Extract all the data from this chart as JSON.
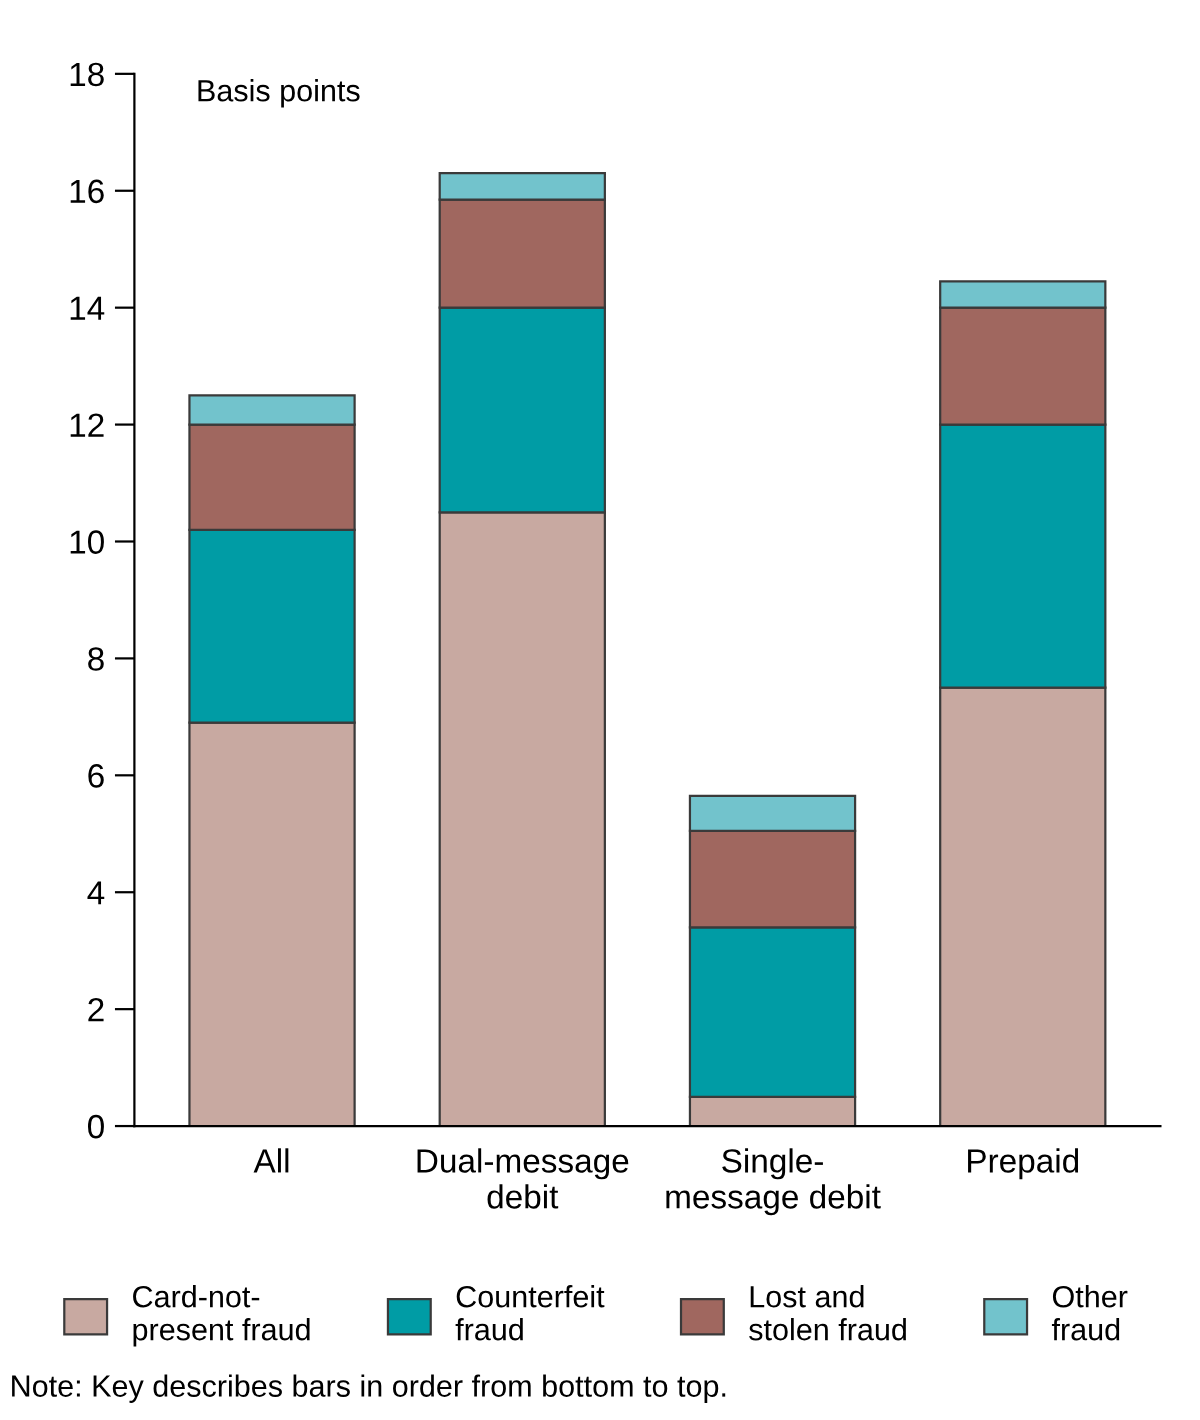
{
  "chart_data": {
    "type": "bar",
    "stacked": true,
    "ylabel": "Basis points",
    "categories": [
      "All",
      "Dual-message\ndebit",
      "Single-\nmessage debit",
      "Prepaid"
    ],
    "series": [
      {
        "name": "Card-not-\npresent fraud",
        "color": "#c8a9a1",
        "values": [
          6.9,
          10.5,
          0.5,
          7.5
        ]
      },
      {
        "name": "Counterfeit\nfraud",
        "color": "#009ca5",
        "values": [
          3.3,
          3.5,
          2.9,
          4.5
        ]
      },
      {
        "name": "Lost and\nstolen fraud",
        "color": "#a0675f",
        "values": [
          1.8,
          1.85,
          1.65,
          2.0
        ]
      },
      {
        "name": "Other\nfraud",
        "color": "#72c3cc",
        "values": [
          0.5,
          0.45,
          0.6,
          0.45
        ]
      }
    ],
    "ylim": [
      0,
      18
    ],
    "yticks": [
      0,
      2,
      4,
      6,
      8,
      10,
      12,
      14,
      16,
      18
    ],
    "grid": false,
    "legend": "bottom",
    "annotations": [
      "Note: Key describes bars in order from bottom to top."
    ]
  }
}
